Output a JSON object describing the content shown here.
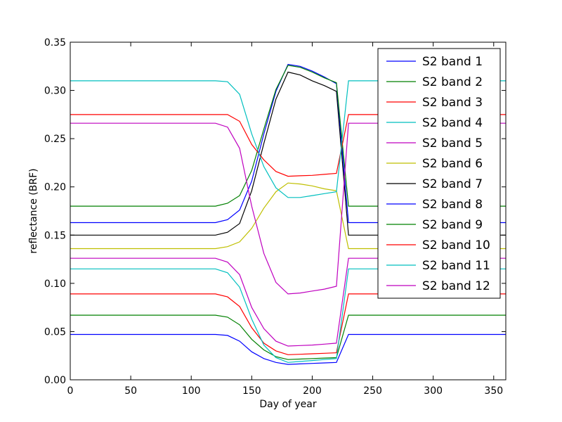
{
  "chart_data": {
    "type": "line",
    "title": "",
    "xlabel": "Day of year",
    "ylabel": "reflectance (BRF)",
    "xlim": [
      0,
      360
    ],
    "ylim": [
      0,
      0.35
    ],
    "xticks": [
      0,
      50,
      100,
      150,
      200,
      250,
      300,
      350
    ],
    "yticks": [
      0.0,
      0.05,
      0.1,
      0.15,
      0.2,
      0.25,
      0.3,
      0.35
    ],
    "xtick_labels": [
      "0",
      "50",
      "100",
      "150",
      "200",
      "250",
      "300",
      "350"
    ],
    "ytick_labels": [
      "0.00",
      "0.05",
      "0.10",
      "0.15",
      "0.20",
      "0.25",
      "0.30",
      "0.35"
    ],
    "grid": false,
    "legend": "top-right",
    "x": [
      0,
      120,
      130,
      140,
      150,
      160,
      170,
      180,
      190,
      200,
      210,
      220,
      230,
      360
    ],
    "series": [
      {
        "name": "S2 band 1",
        "color": "#0000ff",
        "values": [
          0.047,
          0.047,
          0.046,
          0.04,
          0.029,
          0.022,
          0.018,
          0.016,
          0.0165,
          0.017,
          0.0175,
          0.018,
          0.047,
          0.047
        ]
      },
      {
        "name": "S2 band 2",
        "color": "#008000",
        "values": [
          0.067,
          0.067,
          0.065,
          0.057,
          0.042,
          0.031,
          0.024,
          0.021,
          0.0215,
          0.022,
          0.0225,
          0.023,
          0.067,
          0.067
        ]
      },
      {
        "name": "S2 band 3",
        "color": "#ff0000",
        "values": [
          0.089,
          0.089,
          0.086,
          0.076,
          0.054,
          0.038,
          0.03,
          0.026,
          0.0265,
          0.027,
          0.0275,
          0.028,
          0.089,
          0.089
        ]
      },
      {
        "name": "S2 band 4",
        "color": "#00bfbf",
        "values": [
          0.115,
          0.115,
          0.111,
          0.096,
          0.063,
          0.036,
          0.023,
          0.018,
          0.019,
          0.02,
          0.021,
          0.022,
          0.115,
          0.115
        ]
      },
      {
        "name": "S2 band 5",
        "color": "#bf00bf",
        "values": [
          0.126,
          0.126,
          0.122,
          0.109,
          0.075,
          0.053,
          0.04,
          0.035,
          0.0355,
          0.036,
          0.037,
          0.038,
          0.126,
          0.126
        ]
      },
      {
        "name": "S2 band 6",
        "color": "#bfbf00",
        "values": [
          0.136,
          0.136,
          0.138,
          0.143,
          0.157,
          0.178,
          0.195,
          0.204,
          0.203,
          0.201,
          0.198,
          0.196,
          0.136,
          0.136
        ]
      },
      {
        "name": "S2 band 7",
        "color": "#000000",
        "values": [
          0.15,
          0.15,
          0.153,
          0.162,
          0.196,
          0.245,
          0.291,
          0.319,
          0.316,
          0.31,
          0.305,
          0.299,
          0.15,
          0.15
        ]
      },
      {
        "name": "S2 band 8",
        "color": "#0000ff",
        "values": [
          0.163,
          0.163,
          0.166,
          0.176,
          0.206,
          0.255,
          0.299,
          0.327,
          0.325,
          0.32,
          0.314,
          0.307,
          0.163,
          0.163
        ]
      },
      {
        "name": "S2 band 9",
        "color": "#008000",
        "values": [
          0.18,
          0.18,
          0.183,
          0.191,
          0.217,
          0.26,
          0.301,
          0.326,
          0.324,
          0.319,
          0.313,
          0.308,
          0.18,
          0.18
        ]
      },
      {
        "name": "S2 band 10",
        "color": "#ff0000",
        "values": [
          0.275,
          0.275,
          0.275,
          0.268,
          0.244,
          0.228,
          0.216,
          0.211,
          0.2115,
          0.212,
          0.213,
          0.214,
          0.275,
          0.275
        ]
      },
      {
        "name": "S2 band 11",
        "color": "#00bfbf",
        "values": [
          0.31,
          0.31,
          0.309,
          0.296,
          0.255,
          0.221,
          0.199,
          0.189,
          0.189,
          0.191,
          0.193,
          0.195,
          0.31,
          0.31
        ]
      },
      {
        "name": "S2 band 12",
        "color": "#bf00bf",
        "values": [
          0.266,
          0.266,
          0.262,
          0.24,
          0.18,
          0.131,
          0.101,
          0.089,
          0.09,
          0.092,
          0.094,
          0.097,
          0.266,
          0.266
        ]
      }
    ]
  }
}
